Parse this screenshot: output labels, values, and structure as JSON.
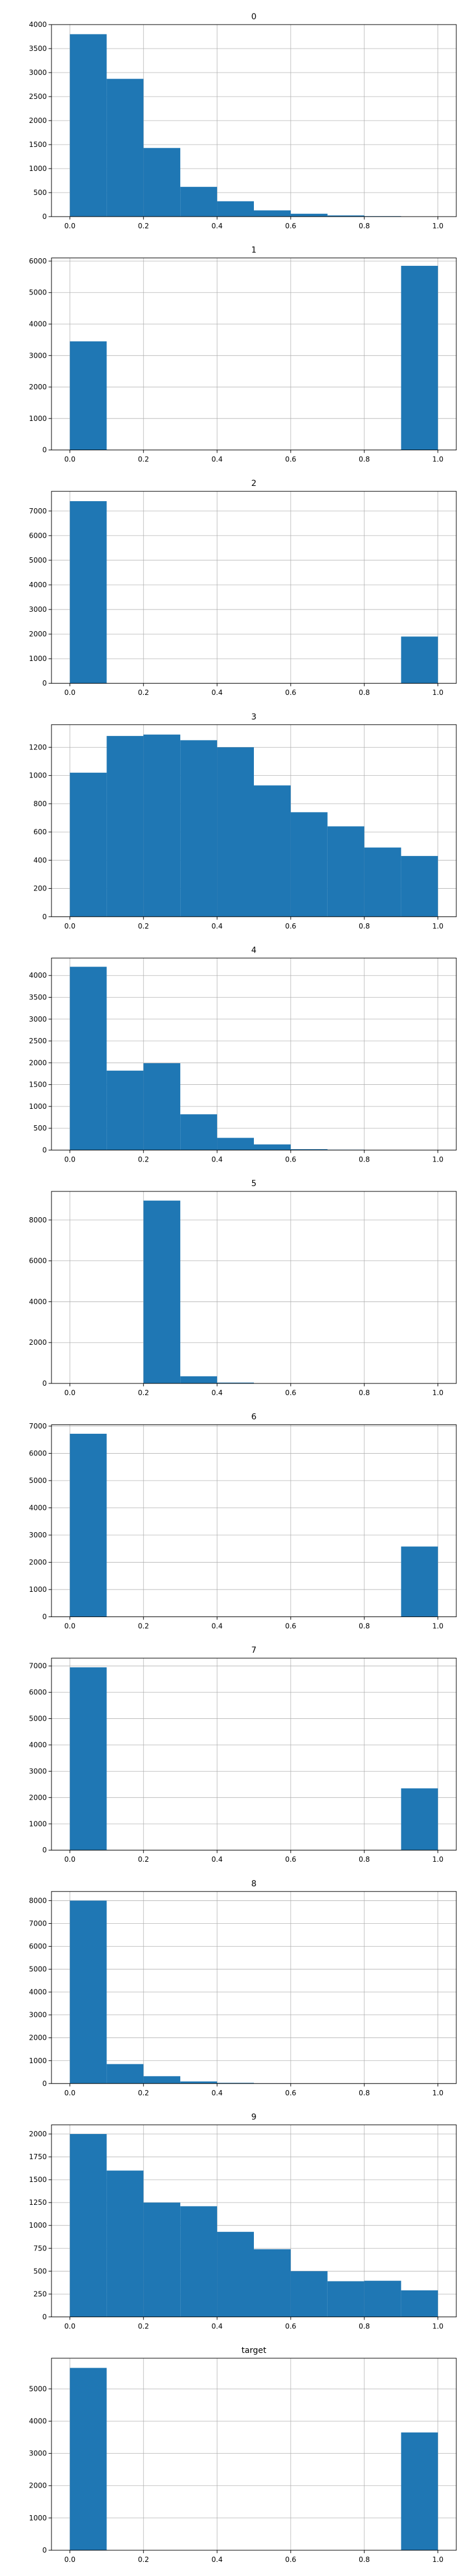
{
  "figure": {
    "bar_color": "#1f77b4",
    "grid_color": "#b0b0b0",
    "axis_color": "#000000",
    "x_ticks": [
      "0.0",
      "0.2",
      "0.4",
      "0.6",
      "0.8",
      "1.0"
    ]
  },
  "chart_data": [
    {
      "type": "bar",
      "title": "0",
      "bin_edges": [
        0,
        0.1,
        0.2,
        0.3,
        0.4,
        0.5,
        0.6,
        0.7,
        0.8,
        0.9,
        1.0
      ],
      "values": [
        3800,
        2870,
        1430,
        620,
        320,
        130,
        60,
        25,
        10,
        5
      ],
      "xlim": [
        -0.05,
        1.05
      ],
      "ylim": [
        0,
        4000
      ],
      "y_ticks": [
        "0",
        "500",
        "1000",
        "1500",
        "2000",
        "2500",
        "3000",
        "3500",
        "4000"
      ],
      "grid": true
    },
    {
      "type": "bar",
      "title": "1",
      "bin_edges": [
        0,
        0.1,
        0.2,
        0.3,
        0.4,
        0.5,
        0.6,
        0.7,
        0.8,
        0.9,
        1.0
      ],
      "values": [
        3450,
        0,
        0,
        0,
        0,
        0,
        0,
        0,
        0,
        5850
      ],
      "xlim": [
        -0.05,
        1.05
      ],
      "ylim": [
        0,
        6100
      ],
      "y_ticks": [
        "0",
        "1000",
        "2000",
        "3000",
        "4000",
        "5000",
        "6000"
      ],
      "grid": true
    },
    {
      "type": "bar",
      "title": "2",
      "bin_edges": [
        0,
        0.1,
        0.2,
        0.3,
        0.4,
        0.5,
        0.6,
        0.7,
        0.8,
        0.9,
        1.0
      ],
      "values": [
        7400,
        0,
        0,
        0,
        0,
        0,
        0,
        0,
        0,
        1900
      ],
      "xlim": [
        -0.05,
        1.05
      ],
      "ylim": [
        0,
        7800
      ],
      "y_ticks": [
        "0",
        "1000",
        "2000",
        "3000",
        "4000",
        "5000",
        "6000",
        "7000"
      ],
      "grid": true
    },
    {
      "type": "bar",
      "title": "3",
      "bin_edges": [
        0,
        0.1,
        0.2,
        0.3,
        0.4,
        0.5,
        0.6,
        0.7,
        0.8,
        0.9,
        1.0
      ],
      "values": [
        1020,
        1280,
        1290,
        1250,
        1200,
        930,
        740,
        640,
        490,
        430
      ],
      "xlim": [
        -0.05,
        1.05
      ],
      "ylim": [
        0,
        1360
      ],
      "y_ticks": [
        "0",
        "200",
        "400",
        "600",
        "800",
        "1000",
        "1200"
      ],
      "grid": true
    },
    {
      "type": "bar",
      "title": "4",
      "bin_edges": [
        0,
        0.1,
        0.2,
        0.3,
        0.4,
        0.5,
        0.6,
        0.7,
        0.8,
        0.9,
        1.0
      ],
      "values": [
        4200,
        1820,
        1990,
        820,
        280,
        130,
        20,
        8,
        4,
        2
      ],
      "xlim": [
        -0.05,
        1.05
      ],
      "ylim": [
        0,
        4400
      ],
      "y_ticks": [
        "0",
        "500",
        "1000",
        "1500",
        "2000",
        "2500",
        "3000",
        "3500",
        "4000"
      ],
      "grid": true
    },
    {
      "type": "bar",
      "title": "5",
      "bin_edges": [
        0,
        0.1,
        0.2,
        0.3,
        0.4,
        0.5,
        0.6,
        0.7,
        0.8,
        0.9,
        1.0
      ],
      "values": [
        0,
        0,
        8950,
        350,
        40,
        10,
        5,
        0,
        0,
        0
      ],
      "xlim": [
        -0.05,
        1.05
      ],
      "ylim": [
        0,
        9400
      ],
      "y_ticks": [
        "0",
        "2000",
        "4000",
        "6000",
        "8000"
      ],
      "grid": true
    },
    {
      "type": "bar",
      "title": "6",
      "bin_edges": [
        0,
        0.1,
        0.2,
        0.3,
        0.4,
        0.5,
        0.6,
        0.7,
        0.8,
        0.9,
        1.0
      ],
      "values": [
        6720,
        0,
        0,
        0,
        0,
        0,
        0,
        0,
        0,
        2580
      ],
      "xlim": [
        -0.05,
        1.05
      ],
      "ylim": [
        0,
        7050
      ],
      "y_ticks": [
        "0",
        "1000",
        "2000",
        "3000",
        "4000",
        "5000",
        "6000",
        "7000"
      ],
      "grid": true
    },
    {
      "type": "bar",
      "title": "7",
      "bin_edges": [
        0,
        0.1,
        0.2,
        0.3,
        0.4,
        0.5,
        0.6,
        0.7,
        0.8,
        0.9,
        1.0
      ],
      "values": [
        6950,
        0,
        0,
        0,
        0,
        0,
        0,
        0,
        0,
        2350
      ],
      "xlim": [
        -0.05,
        1.05
      ],
      "ylim": [
        0,
        7300
      ],
      "y_ticks": [
        "0",
        "1000",
        "2000",
        "3000",
        "4000",
        "5000",
        "6000",
        "7000"
      ],
      "grid": true
    },
    {
      "type": "bar",
      "title": "8",
      "bin_edges": [
        0,
        0.1,
        0.2,
        0.3,
        0.4,
        0.5,
        0.6,
        0.7,
        0.8,
        0.9,
        1.0
      ],
      "values": [
        8000,
        850,
        320,
        90,
        30,
        10,
        5,
        0,
        0,
        0
      ],
      "xlim": [
        -0.05,
        1.05
      ],
      "ylim": [
        0,
        8400
      ],
      "y_ticks": [
        "0",
        "1000",
        "2000",
        "3000",
        "4000",
        "5000",
        "6000",
        "7000",
        "8000"
      ],
      "grid": true
    },
    {
      "type": "bar",
      "title": "9",
      "bin_edges": [
        0,
        0.1,
        0.2,
        0.3,
        0.4,
        0.5,
        0.6,
        0.7,
        0.8,
        0.9,
        1.0
      ],
      "values": [
        2000,
        1600,
        1250,
        1210,
        930,
        740,
        500,
        390,
        395,
        290
      ],
      "xlim": [
        -0.05,
        1.05
      ],
      "ylim": [
        0,
        2100
      ],
      "y_ticks": [
        "0",
        "250",
        "500",
        "750",
        "1000",
        "1250",
        "1500",
        "1750",
        "2000"
      ],
      "grid": true
    },
    {
      "type": "bar",
      "title": "target",
      "bin_edges": [
        0,
        0.1,
        0.2,
        0.3,
        0.4,
        0.5,
        0.6,
        0.7,
        0.8,
        0.9,
        1.0
      ],
      "values": [
        5650,
        0,
        0,
        0,
        0,
        0,
        0,
        0,
        0,
        3650
      ],
      "xlim": [
        -0.05,
        1.05
      ],
      "ylim": [
        0,
        5950
      ],
      "y_ticks": [
        "0",
        "1000",
        "2000",
        "3000",
        "4000",
        "5000"
      ],
      "grid": true
    }
  ]
}
